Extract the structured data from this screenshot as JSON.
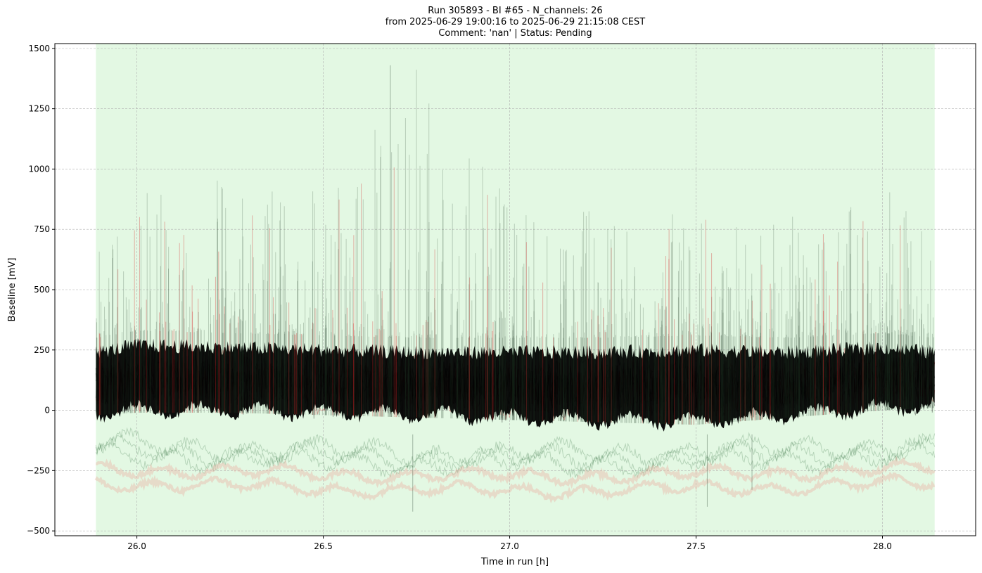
{
  "chart_data": {
    "type": "line",
    "title_lines": [
      "Run 305893  -  BI #65  -  N_channels: 26",
      "from  2025-06-29 19:00:16  to  2025-06-29 21:15:08 CEST",
      "Comment: 'nan' | Status: Pending"
    ],
    "xlabel": "Time in run [h]",
    "ylabel": "Baseline [mV]",
    "xlim": [
      25.78,
      28.25
    ],
    "ylim": [
      -520,
      1520
    ],
    "xticks": [
      26.0,
      26.5,
      27.0,
      27.5,
      28.0
    ],
    "xtick_labels": [
      "26.0",
      "26.5",
      "27.0",
      "27.5",
      "28.0"
    ],
    "yticks": [
      -500,
      -250,
      0,
      250,
      500,
      750,
      1000,
      1250,
      1500
    ],
    "ytick_labels": [
      "−500",
      "−250",
      "0",
      "250",
      "500",
      "750",
      "1000",
      "1250",
      "1500"
    ],
    "grid": true,
    "shaded_region": {
      "x_start": 25.89,
      "x_end": 28.14,
      "color": "#e0f7e0"
    },
    "n_channels": 26,
    "band_envelope": {
      "x": [
        25.89,
        26.0,
        26.25,
        26.5,
        26.75,
        27.0,
        27.25,
        27.5,
        27.75,
        28.0,
        28.14
      ],
      "core_upper": [
        300,
        330,
        320,
        310,
        300,
        300,
        300,
        310,
        300,
        320,
        300
      ],
      "core_lower": [
        -60,
        -50,
        -50,
        -60,
        -70,
        -80,
        -90,
        -100,
        -70,
        -40,
        -30
      ],
      "spike_max": [
        650,
        950,
        970,
        900,
        1430,
        860,
        860,
        810,
        800,
        920,
        880
      ]
    },
    "series": [
      {
        "color": "#000000",
        "offset": 0
      },
      {
        "color": "#000000",
        "offset": -20
      },
      {
        "color": "#000000",
        "offset": -40
      },
      {
        "color": "#d62728",
        "offset": -60
      },
      {
        "color": "#000000",
        "offset": -80
      },
      {
        "color": "#000000",
        "offset": -100
      },
      {
        "color": "#d62728",
        "offset": -120
      },
      {
        "color": "#2e6b3a",
        "offset": -140
      },
      {
        "color": "#2e6b3a",
        "offset": -160
      },
      {
        "color": "#2e6b3a",
        "offset": -180
      },
      {
        "color": "#e8b8a8",
        "offset": -200
      },
      {
        "color": "#e8b8a8",
        "offset": -260
      }
    ],
    "colors": {
      "shade": "#e0f7e0",
      "main": "#000000",
      "accent": "#d62728",
      "low_band": "#e8b8a8",
      "green_trace": "#2e6b3a",
      "grid": "#b0b0b0"
    }
  }
}
